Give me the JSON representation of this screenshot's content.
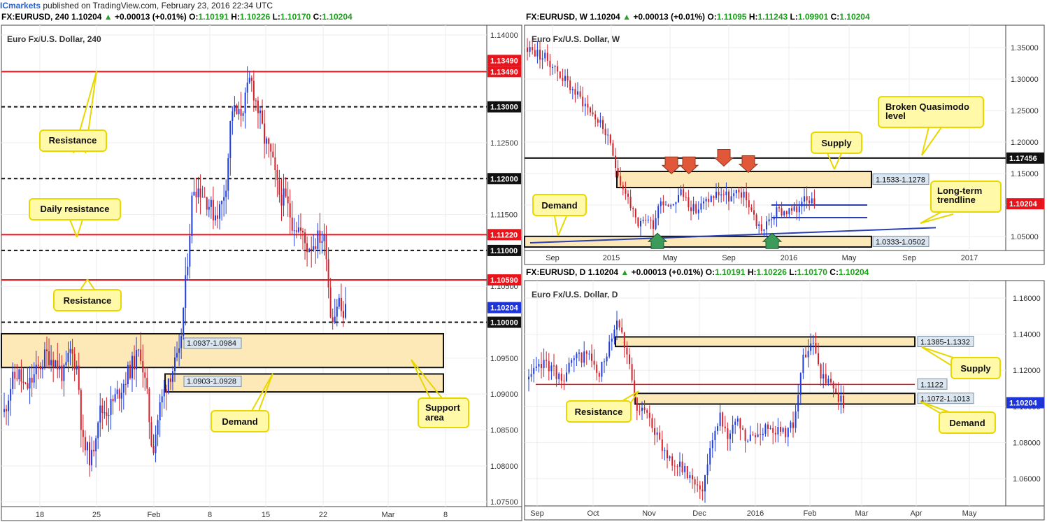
{
  "header": {
    "brand": "ICmarkets",
    "rest": " published on TradingView.com, February 23, 2016 22:34 UTC"
  },
  "colors": {
    "bull": "#1f3de0",
    "bear": "#d4202a",
    "zone_fill": "#fde9b8",
    "label_fill": "#fff9a8",
    "label_border": "#e8d800",
    "red_line": "#e8141c",
    "arrow_red": "#e0573a",
    "arrow_green": "#3c9a5a"
  },
  "charts": [
    {
      "id": "h4",
      "header": {
        "symbol": "FX:EURUSD, 240",
        "last": "1.10204",
        "change": "+0.00013 (+0.01%)",
        "o_label": "O:",
        "o": "1.10191",
        "h_label": "H:",
        "h": "1.10226",
        "l_label": "L:",
        "l": "1.10170",
        "c_label": "C:",
        "c": "1.10204"
      },
      "inner_title": "Euro Fx/U.S. Dollar, 240",
      "y_ticks": [
        "1.14000",
        "1.13500",
        "1.13000",
        "1.12500",
        "1.12000",
        "1.11500",
        "1.11000",
        "1.10500",
        "1.10000",
        "1.09500",
        "1.09000",
        "1.08500",
        "1.08000",
        "1.07500"
      ],
      "x_ticks": [
        "18",
        "25",
        "Feb",
        "8",
        "15",
        "22",
        "Mar",
        "8"
      ],
      "levels": [
        {
          "price": 1.1349,
          "style": "red",
          "tag": "1.13490"
        },
        {
          "price": 1.13,
          "style": "dash",
          "tag": "1.13000"
        },
        {
          "price": 1.12,
          "style": "dash",
          "tag": "1.12000"
        },
        {
          "price": 1.1122,
          "style": "red",
          "tag": "1.11220"
        },
        {
          "price": 1.11,
          "style": "dash",
          "tag": "1.11000"
        },
        {
          "price": 1.1059,
          "style": "red",
          "tag": "1.10590"
        },
        {
          "price": 1.1,
          "style": "dash",
          "tag": "1.10000"
        }
      ],
      "extra_tag": "1.13490",
      "current_tag": "1.10204",
      "zones": [
        {
          "label": "1.0937-1.0984",
          "top": 1.0984,
          "bottom": 1.0937
        },
        {
          "label": "1.0903-1.0928",
          "top": 1.0928,
          "bottom": 1.0903
        }
      ],
      "callouts": [
        "Resistance",
        "Daily resistance",
        "Resistance",
        "Demand",
        "Support area"
      ]
    },
    {
      "id": "weekly",
      "header": {
        "symbol": "FX:EURUSD, W",
        "last": "1.10204",
        "change": "+0.00013 (+0.01%)",
        "o_label": "O:",
        "o": "1.11095",
        "h_label": "H:",
        "h": "1.11243",
        "l_label": "L:",
        "l": "1.09901",
        "c_label": "C:",
        "c": "1.10204"
      },
      "inner_title": "Euro Fx/U.S. Dollar, W",
      "y_ticks": [
        "1.35000",
        "1.30000",
        "1.25000",
        "1.20000",
        "1.15000",
        "1.10000",
        "1.05000"
      ],
      "x_ticks": [
        "Sep",
        "2015",
        "May",
        "Sep",
        "2016",
        "May",
        "Sep",
        "2017"
      ],
      "level_tag": "1.17456",
      "current_tag": "1.10204",
      "zones": [
        {
          "label": "1.1533-1.1278",
          "top": 1.1533,
          "bottom": 1.1278
        },
        {
          "label": "1.0333-1.0502",
          "top": 1.0502,
          "bottom": 1.0333
        }
      ],
      "callouts": [
        "Supply",
        "Broken Quasimodo level",
        "Demand",
        "Long-term trendline"
      ]
    },
    {
      "id": "daily",
      "header": {
        "symbol": "FX:EURUSD, D",
        "last": "1.10204",
        "change": "+0.00013 (+0.01%)",
        "o_label": "O:",
        "o": "1.10191",
        "h_label": "H:",
        "h": "1.10226",
        "l_label": "L:",
        "l": "1.10170",
        "c_label": "C:",
        "c": "1.10204"
      },
      "inner_title": "Euro Fx/U.S. Dollar, D",
      "y_ticks": [
        "1.16000",
        "1.14000",
        "1.12000",
        "1.10000",
        "1.08000",
        "1.06000"
      ],
      "x_ticks": [
        "Sep",
        "Oct",
        "Nov",
        "Dec",
        "2016",
        "Feb",
        "Mar",
        "Apr",
        "May"
      ],
      "line_tag": "1.1122",
      "current_tag": "1.10204",
      "zones": [
        {
          "label": "1.1385-1.1332",
          "top": 1.1385,
          "bottom": 1.1332
        },
        {
          "label": "1.1072-1.1013",
          "top": 1.1072,
          "bottom": 1.1013
        }
      ],
      "callouts": [
        "Supply",
        "Resistance",
        "Demand"
      ]
    }
  ],
  "chart_data": [
    {
      "type": "candlestick",
      "title": "Euro Fx/U.S. Dollar, 240",
      "ylim": [
        1.0745,
        1.1405
      ],
      "horizontal_levels": [
        1.1349,
        1.13,
        1.12,
        1.1122,
        1.11,
        1.1059,
        1.1
      ],
      "zones": [
        [
          1.0937,
          1.0984
        ],
        [
          1.0903,
          1.0928
        ]
      ],
      "last_close": 1.10204,
      "approx_path": [
        [
          0,
          1.0875
        ],
        [
          10,
          1.0915
        ],
        [
          20,
          1.093
        ],
        [
          30,
          1.0905
        ],
        [
          40,
          1.092
        ],
        [
          60,
          1.0955
        ],
        [
          70,
          1.095
        ],
        [
          85,
          1.0925
        ],
        [
          95,
          1.096
        ],
        [
          105,
          1.0935
        ],
        [
          112,
          1.083
        ],
        [
          125,
          1.081
        ],
        [
          135,
          1.0875
        ],
        [
          150,
          1.088
        ],
        [
          165,
          1.0905
        ],
        [
          180,
          1.0935
        ],
        [
          195,
          1.096
        ],
        [
          205,
          1.089
        ],
        [
          212,
          1.082
        ],
        [
          222,
          1.088
        ],
        [
          235,
          1.0925
        ],
        [
          250,
          1.095
        ],
        [
          260,
          1.106
        ],
        [
          270,
          1.119
        ],
        [
          280,
          1.1185
        ],
        [
          290,
          1.117
        ],
        [
          300,
          1.115
        ],
        [
          310,
          1.116
        ],
        [
          318,
          1.12
        ],
        [
          325,
          1.13
        ],
        [
          335,
          1.1285
        ],
        [
          345,
          1.131
        ],
        [
          352,
          1.134
        ],
        [
          362,
          1.13
        ],
        [
          372,
          1.1255
        ],
        [
          382,
          1.123
        ],
        [
          392,
          1.118
        ],
        [
          402,
          1.117
        ],
        [
          412,
          1.114
        ],
        [
          422,
          1.113
        ],
        [
          432,
          1.1105
        ],
        [
          442,
          1.111
        ],
        [
          452,
          1.112
        ],
        [
          460,
          1.111
        ],
        [
          466,
          1.1015
        ],
        [
          472,
          1.101
        ],
        [
          478,
          1.1035
        ],
        [
          484,
          1.1005
        ],
        [
          490,
          1.102
        ]
      ]
    },
    {
      "type": "candlestick",
      "title": "Euro Fx/U.S. Dollar, W",
      "ylim": [
        1.04,
        1.37
      ],
      "horizontal_levels": [
        1.17456
      ],
      "zones": [
        [
          1.1278,
          1.1533
        ],
        [
          1.0333,
          1.0502
        ]
      ],
      "last_close": 1.10204,
      "approx_path": [
        [
          0,
          1.35
        ],
        [
          30,
          1.33
        ],
        [
          60,
          1.29
        ],
        [
          90,
          1.25
        ],
        [
          110,
          1.22
        ],
        [
          125,
          1.17
        ],
        [
          135,
          1.13
        ],
        [
          145,
          1.11
        ],
        [
          158,
          1.06
        ],
        [
          168,
          1.08
        ],
        [
          180,
          1.07
        ],
        [
          190,
          1.11
        ],
        [
          205,
          1.1
        ],
        [
          220,
          1.12
        ],
        [
          240,
          1.09
        ],
        [
          260,
          1.11
        ],
        [
          275,
          1.12
        ],
        [
          290,
          1.11
        ],
        [
          305,
          1.12
        ],
        [
          318,
          1.1
        ],
        [
          328,
          1.07
        ],
        [
          338,
          1.06
        ],
        [
          348,
          1.08
        ],
        [
          358,
          1.09
        ],
        [
          372,
          1.09
        ],
        [
          385,
          1.09
        ],
        [
          395,
          1.12
        ],
        [
          405,
          1.11
        ]
      ]
    },
    {
      "type": "candlestick",
      "title": "Euro Fx/U.S. Dollar, D",
      "ylim": [
        1.045,
        1.165
      ],
      "horizontal_levels": [
        1.1122
      ],
      "zones": [
        [
          1.1332,
          1.1385
        ],
        [
          1.1013,
          1.1072
        ]
      ],
      "last_close": 1.10204,
      "approx_path": [
        [
          0,
          1.115
        ],
        [
          25,
          1.125
        ],
        [
          45,
          1.115
        ],
        [
          65,
          1.125
        ],
        [
          85,
          1.13
        ],
        [
          100,
          1.115
        ],
        [
          118,
          1.14
        ],
        [
          128,
          1.15
        ],
        [
          140,
          1.13
        ],
        [
          155,
          1.095
        ],
        [
          170,
          1.1
        ],
        [
          185,
          1.08
        ],
        [
          205,
          1.07
        ],
        [
          220,
          1.065
        ],
        [
          235,
          1.06
        ],
        [
          250,
          1.055
        ],
        [
          260,
          1.08
        ],
        [
          272,
          1.095
        ],
        [
          285,
          1.085
        ],
        [
          300,
          1.09
        ],
        [
          312,
          1.08
        ],
        [
          328,
          1.085
        ],
        [
          345,
          1.09
        ],
        [
          362,
          1.085
        ],
        [
          378,
          1.09
        ],
        [
          392,
          1.125
        ],
        [
          408,
          1.135
        ],
        [
          420,
          1.115
        ],
        [
          435,
          1.11
        ],
        [
          448,
          1.102
        ]
      ]
    }
  ]
}
